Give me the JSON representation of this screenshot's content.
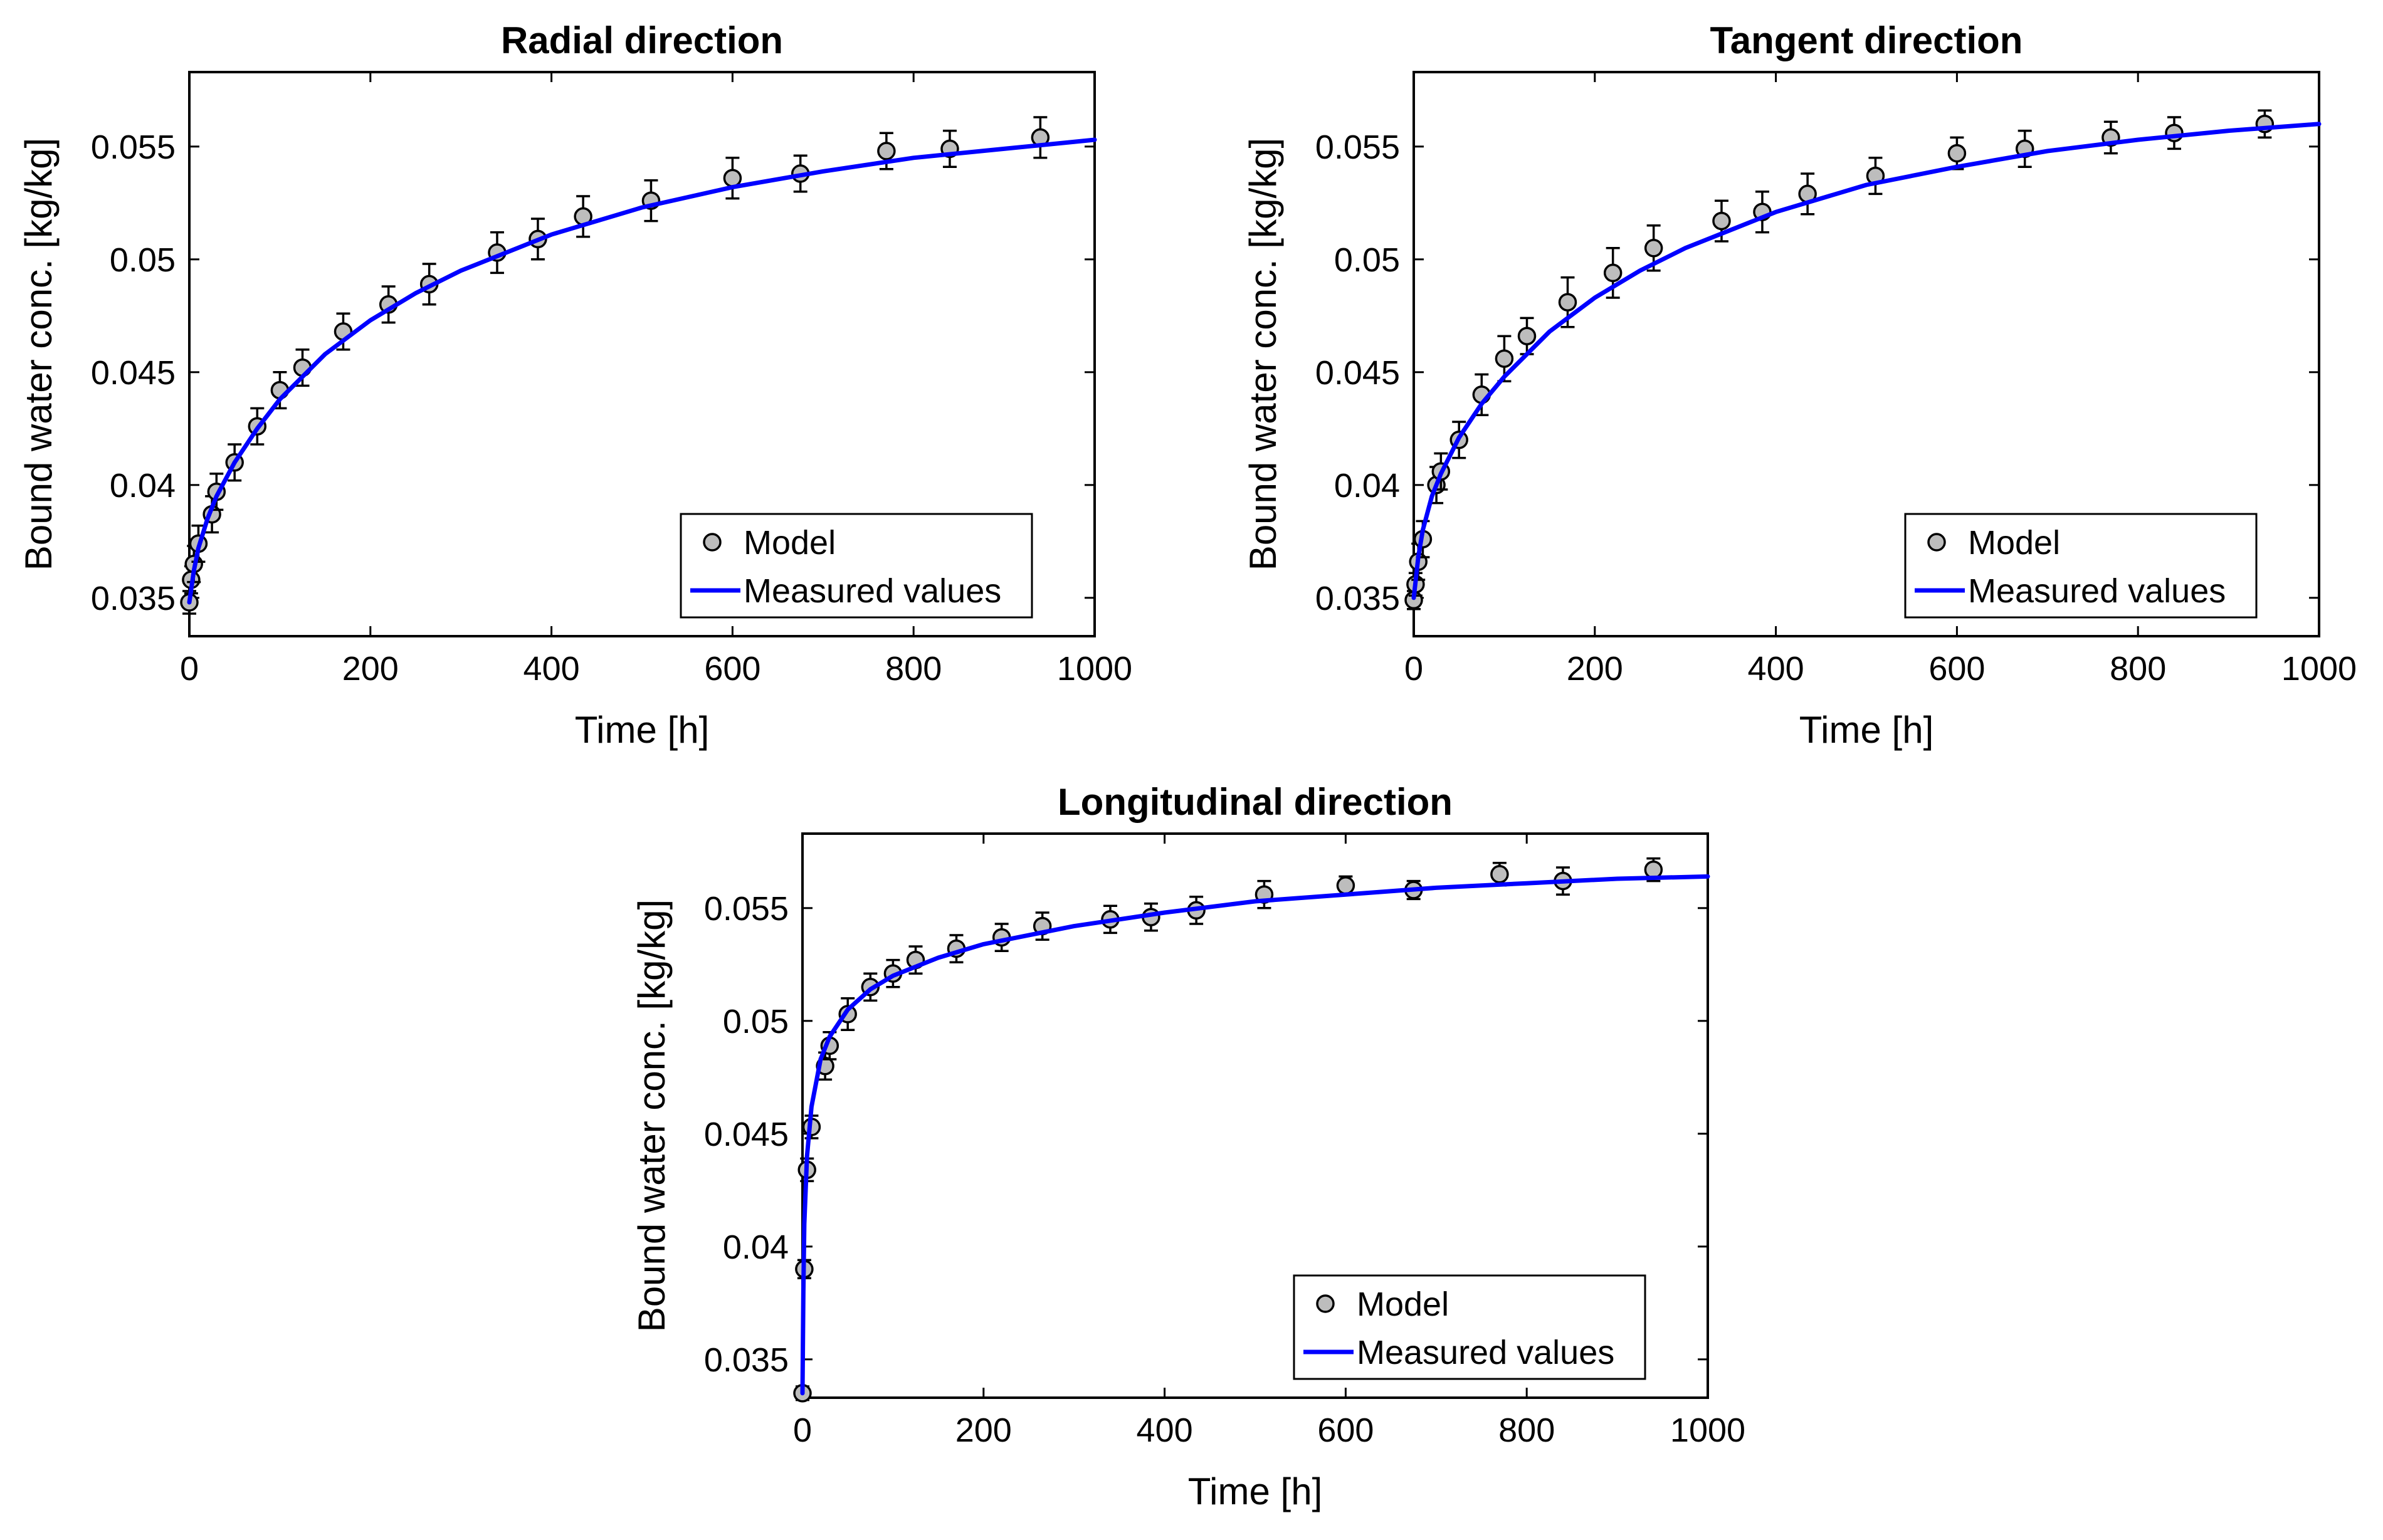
{
  "figure": {
    "colors": {
      "model_marker_fill": "#bdbdbd",
      "model_marker_edge": "#000000",
      "measured_line": "#0000ff"
    }
  },
  "chart_data": [
    {
      "type": "scatter+line",
      "title": "Radial direction",
      "xlabel": "Time [h]",
      "ylabel": "Bound water conc. [kg/kg]",
      "xlim": [
        0,
        1000
      ],
      "ylim": [
        0.0333,
        0.0583
      ],
      "xticks": [
        0,
        200,
        400,
        600,
        800,
        1000
      ],
      "xtick_labels": [
        "0",
        "200",
        "400",
        "600",
        "800",
        "1000"
      ],
      "yticks": [
        0.035,
        0.04,
        0.045,
        0.05,
        0.055
      ],
      "ytick_labels": [
        "0.035",
        "0.04",
        "0.045",
        "0.05",
        "0.055"
      ],
      "legend": {
        "location": "bottom-right",
        "entries": [
          "Model",
          "Measured values"
        ]
      },
      "series": [
        {
          "name": "Model",
          "kind": "markers_with_errorbars",
          "x": [
            0,
            2,
            5,
            10,
            25,
            30,
            50,
            75,
            100,
            125,
            170,
            220,
            265,
            340,
            385,
            435,
            510,
            600,
            675,
            770,
            840,
            940
          ],
          "y": [
            0.0348,
            0.0358,
            0.0365,
            0.0374,
            0.0387,
            0.0397,
            0.041,
            0.0426,
            0.0442,
            0.0452,
            0.0468,
            0.048,
            0.0489,
            0.0503,
            0.0509,
            0.0519,
            0.0526,
            0.0536,
            0.0538,
            0.0548,
            0.0549,
            0.0554
          ],
          "err": [
            0.0005,
            0.0006,
            0.0008,
            0.0008,
            0.0008,
            0.0008,
            0.0008,
            0.0008,
            0.0008,
            0.0008,
            0.0008,
            0.0008,
            0.0009,
            0.0009,
            0.0009,
            0.0009,
            0.0009,
            0.0009,
            0.0008,
            0.0008,
            0.0008,
            0.0009
          ]
        },
        {
          "name": "Measured values",
          "kind": "line",
          "x": [
            0,
            5,
            10,
            20,
            30,
            50,
            75,
            100,
            150,
            200,
            250,
            300,
            400,
            500,
            600,
            700,
            800,
            900,
            1000
          ],
          "y": [
            0.0348,
            0.0362,
            0.0372,
            0.0385,
            0.0395,
            0.041,
            0.0425,
            0.0438,
            0.0458,
            0.0473,
            0.0485,
            0.0495,
            0.0511,
            0.0523,
            0.0532,
            0.0539,
            0.0545,
            0.0549,
            0.0553
          ]
        }
      ]
    },
    {
      "type": "scatter+line",
      "title": "Tangent direction",
      "xlabel": "Time [h]",
      "ylabel": "Bound water conc. [kg/kg]",
      "xlim": [
        0,
        1000
      ],
      "ylim": [
        0.0333,
        0.0583
      ],
      "xticks": [
        0,
        200,
        400,
        600,
        800,
        1000
      ],
      "xtick_labels": [
        "0",
        "200",
        "400",
        "600",
        "800",
        "1000"
      ],
      "yticks": [
        0.035,
        0.04,
        0.045,
        0.05,
        0.055
      ],
      "ytick_labels": [
        "0.035",
        "0.04",
        "0.045",
        "0.05",
        "0.055"
      ],
      "legend": {
        "location": "bottom-right",
        "entries": [
          "Model",
          "Measured values"
        ]
      },
      "series": [
        {
          "name": "Model",
          "kind": "markers_with_errorbars",
          "x": [
            0,
            2,
            5,
            10,
            25,
            30,
            50,
            75,
            100,
            125,
            170,
            220,
            265,
            340,
            385,
            435,
            510,
            600,
            675,
            770,
            840,
            940
          ],
          "y": [
            0.0349,
            0.0356,
            0.0366,
            0.0376,
            0.04,
            0.0406,
            0.042,
            0.044,
            0.0456,
            0.0466,
            0.0481,
            0.0494,
            0.0505,
            0.0517,
            0.0521,
            0.0529,
            0.0537,
            0.0547,
            0.0549,
            0.0554,
            0.0556,
            0.056
          ],
          "err": [
            0.0004,
            0.0005,
            0.0008,
            0.0008,
            0.0008,
            0.0008,
            0.0008,
            0.0009,
            0.001,
            0.0008,
            0.0011,
            0.0011,
            0.001,
            0.0009,
            0.0009,
            0.0009,
            0.0008,
            0.0007,
            0.0008,
            0.0007,
            0.0007,
            0.0006
          ]
        },
        {
          "name": "Measured values",
          "kind": "line",
          "x": [
            0,
            5,
            10,
            20,
            30,
            50,
            75,
            100,
            150,
            200,
            250,
            300,
            400,
            500,
            600,
            700,
            800,
            900,
            1000
          ],
          "y": [
            0.035,
            0.0368,
            0.038,
            0.0395,
            0.0405,
            0.0421,
            0.0436,
            0.0448,
            0.0468,
            0.0483,
            0.0495,
            0.0505,
            0.0521,
            0.0533,
            0.0541,
            0.0548,
            0.0553,
            0.0557,
            0.056
          ]
        }
      ]
    },
    {
      "type": "scatter+line",
      "title": "Longitudinal direction",
      "xlabel": "Time [h]",
      "ylabel": "Bound water conc. [kg/kg]",
      "xlim": [
        0,
        1000
      ],
      "ylim": [
        0.0333,
        0.0583
      ],
      "xticks": [
        0,
        200,
        400,
        600,
        800,
        1000
      ],
      "xtick_labels": [
        "0",
        "200",
        "400",
        "600",
        "800",
        "1000"
      ],
      "yticks": [
        0.035,
        0.04,
        0.045,
        0.05,
        0.055
      ],
      "ytick_labels": [
        "0.035",
        "0.04",
        "0.045",
        "0.05",
        "0.055"
      ],
      "legend": {
        "location": "bottom-right",
        "entries": [
          "Model",
          "Measured values"
        ]
      },
      "series": [
        {
          "name": "Model",
          "kind": "markers_with_errorbars",
          "x": [
            0,
            2,
            5,
            10,
            25,
            30,
            50,
            75,
            100,
            125,
            170,
            220,
            265,
            340,
            385,
            435,
            510,
            600,
            675,
            770,
            840,
            940
          ],
          "y": [
            0.0335,
            0.039,
            0.0434,
            0.0453,
            0.048,
            0.0489,
            0.0503,
            0.0515,
            0.0521,
            0.0527,
            0.0532,
            0.0537,
            0.0542,
            0.0545,
            0.0546,
            0.0549,
            0.0556,
            0.056,
            0.0558,
            0.0565,
            0.0562,
            0.0567
          ],
          "err": [
            0.0003,
            0.0004,
            0.0005,
            0.0005,
            0.0006,
            0.0006,
            0.0007,
            0.0006,
            0.0006,
            0.0006,
            0.0006,
            0.0006,
            0.0006,
            0.0006,
            0.0006,
            0.0006,
            0.0006,
            0.0004,
            0.0004,
            0.0005,
            0.0006,
            0.0005
          ]
        },
        {
          "name": "Measured values",
          "kind": "line",
          "x": [
            0,
            1,
            2,
            5,
            10,
            20,
            30,
            50,
            75,
            100,
            150,
            200,
            300,
            400,
            500,
            600,
            700,
            800,
            900,
            1000
          ],
          "y": [
            0.0335,
            0.038,
            0.041,
            0.044,
            0.0462,
            0.0483,
            0.0493,
            0.0505,
            0.0514,
            0.052,
            0.0528,
            0.0534,
            0.0542,
            0.0548,
            0.0553,
            0.0556,
            0.0559,
            0.0561,
            0.0563,
            0.0564
          ]
        }
      ]
    }
  ]
}
